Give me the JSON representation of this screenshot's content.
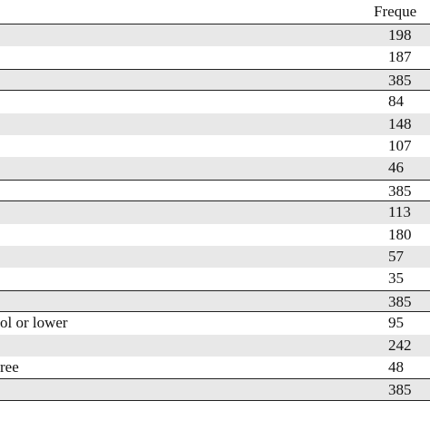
{
  "table": {
    "header": "Freque",
    "rows": [
      {
        "value": 198
      },
      {
        "value": 187
      },
      {
        "value": 385
      },
      {
        "value": 84
      },
      {
        "value": 148
      },
      {
        "value": 107
      },
      {
        "value": 46
      },
      {
        "value": 385
      },
      {
        "value": 113
      },
      {
        "value": 180
      },
      {
        "value": 57
      },
      {
        "value": 35
      },
      {
        "value": 385
      },
      {
        "label": "ol or lower",
        "value": 95
      },
      {
        "value": 242
      },
      {
        "label": "ree",
        "value": 48
      },
      {
        "value": 385
      }
    ],
    "total_rows": [
      2,
      7,
      12,
      16
    ]
  }
}
